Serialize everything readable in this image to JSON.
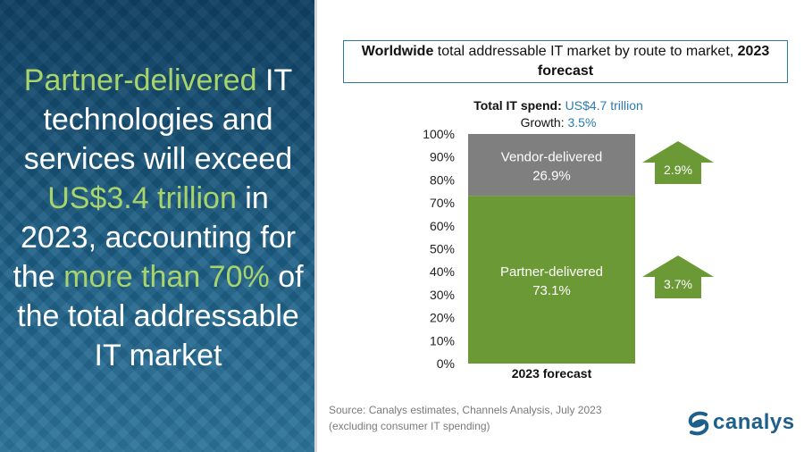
{
  "headline": {
    "part1": "Partner-delivered",
    "part2": " IT technologies and services will exceed ",
    "part3": "US$3.4 trillion",
    "part4": " in 2023, accounting for the ",
    "part5": "more than 70%",
    "part6": " of the total addressable IT market"
  },
  "title": {
    "bold1": "Worldwide",
    "text1": " total addressable IT market by route to market, ",
    "bold2": "2023 forecast"
  },
  "total": {
    "label": "Total IT spend:",
    "value": " US$4.7 trillion",
    "growth_label": "Growth:",
    "growth_value": " 3.5%"
  },
  "chart_data": {
    "type": "bar",
    "stacked": true,
    "title": "Worldwide total addressable IT market by route to market, 2023 forecast",
    "categories": [
      "2023 forecast"
    ],
    "series": [
      {
        "name": "Partner-delivered",
        "values": [
          73.1
        ],
        "label": "73.1%",
        "color": "#6b9936",
        "growth": "3.7%"
      },
      {
        "name": "Vendor-delivered",
        "values": [
          26.9
        ],
        "label": "26.9%",
        "color": "#7f7f7f",
        "growth": "2.9%"
      }
    ],
    "yticks": [
      "0%",
      "10%",
      "20%",
      "30%",
      "40%",
      "50%",
      "60%",
      "70%",
      "80%",
      "90%",
      "100%"
    ],
    "ylim": [
      0,
      100
    ],
    "xlabel": "2023 forecast",
    "ylabel": ""
  },
  "source": {
    "line1": "Source: Canalys estimates, Channels Analysis, July 2023",
    "line2": "(excluding consumer IT spending)"
  },
  "logo": {
    "text": "canalys",
    "icon": "canalys-swirl-icon",
    "color": "#1f5f8b"
  },
  "colors": {
    "accent_green": "#a9d46b",
    "panel_blue": "#1d5f86",
    "highlight_blue": "#2b7bb0",
    "arrow_green": "#6b9936"
  }
}
